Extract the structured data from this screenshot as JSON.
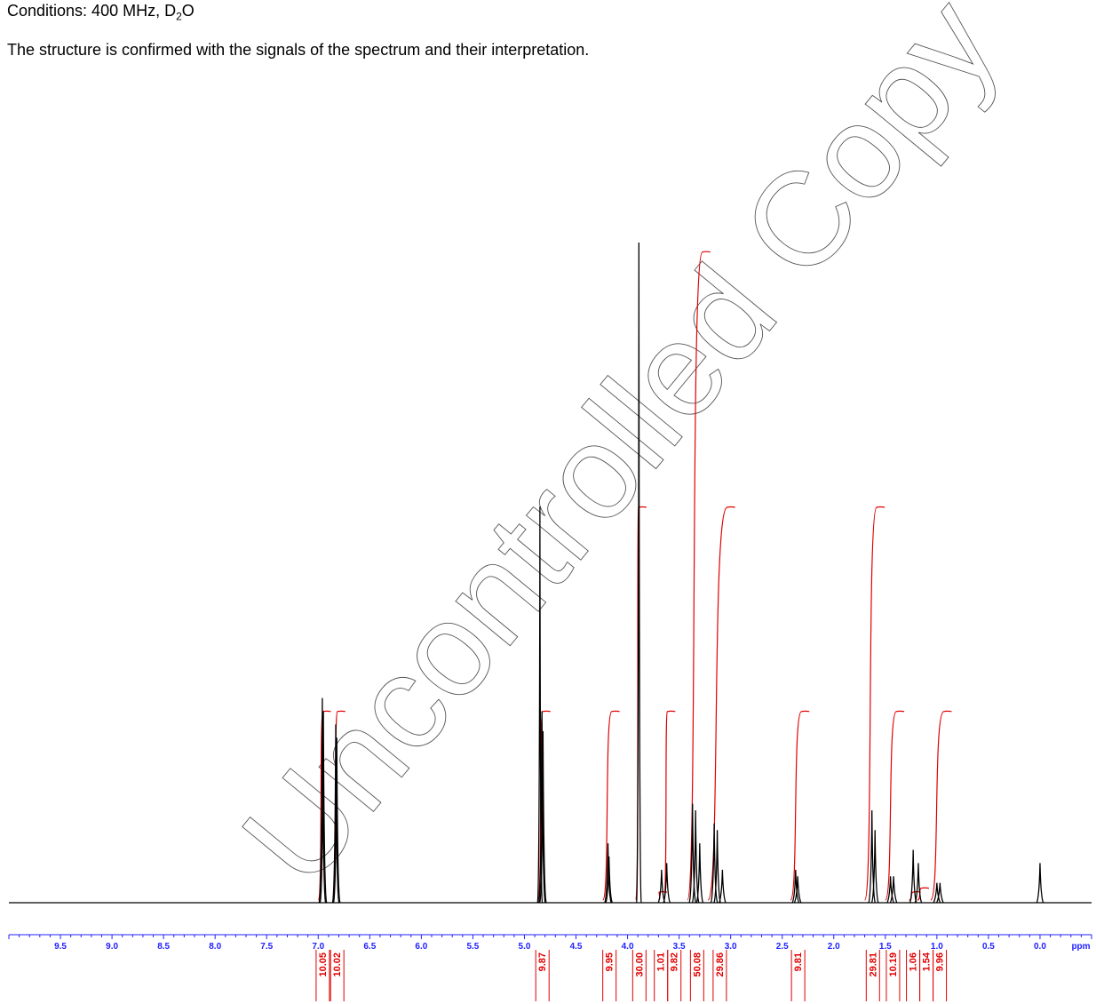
{
  "header": {
    "conditions_prefix": "Conditions: 400 MHz, D",
    "conditions_sub": "2",
    "conditions_suffix": "O",
    "statement": "The structure is confirmed with the signals of the spectrum and their interpretation."
  },
  "watermark": "Uncontrolled Copy",
  "chart_data": {
    "type": "line",
    "title": "",
    "xlabel": "ppm",
    "ylabel": "",
    "xlim": [
      10.0,
      -0.5
    ],
    "x_reversed": true,
    "grid": false,
    "legend": "none",
    "colors": {
      "spectrum": "#000000",
      "integral": "#e00000",
      "axis": "#2020ff"
    },
    "x_ticks": [
      9.5,
      9.0,
      8.5,
      8.0,
      7.5,
      7.0,
      6.5,
      6.0,
      5.5,
      5.0,
      4.5,
      4.0,
      3.5,
      3.0,
      2.5,
      2.0,
      1.5,
      1.0,
      0.5,
      0.0
    ],
    "x_tick_labels": [
      "9.5",
      "9.0",
      "8.5",
      "8.0",
      "7.5",
      "7.0",
      "6.5",
      "6.0",
      "5.5",
      "5.0",
      "4.5",
      "4.0",
      "3.5",
      "3.0",
      "2.5",
      "2.0",
      "1.5",
      "1.0",
      "0.5",
      "0.0"
    ],
    "peaks": [
      {
        "ppm": 6.96,
        "height": 0.31
      },
      {
        "ppm": 6.95,
        "height": 0.29
      },
      {
        "ppm": 6.83,
        "height": 0.27
      },
      {
        "ppm": 6.82,
        "height": 0.25
      },
      {
        "ppm": 4.85,
        "height": 0.6
      },
      {
        "ppm": 4.83,
        "height": 0.29
      },
      {
        "ppm": 4.82,
        "height": 0.26
      },
      {
        "ppm": 4.19,
        "height": 0.09
      },
      {
        "ppm": 4.18,
        "height": 0.07
      },
      {
        "ppm": 3.89,
        "height": 1.0
      },
      {
        "ppm": 3.67,
        "height": 0.05
      },
      {
        "ppm": 3.62,
        "height": 0.06
      },
      {
        "ppm": 3.37,
        "height": 0.15
      },
      {
        "ppm": 3.34,
        "height": 0.14
      },
      {
        "ppm": 3.3,
        "height": 0.09
      },
      {
        "ppm": 3.16,
        "height": 0.12
      },
      {
        "ppm": 3.13,
        "height": 0.11
      },
      {
        "ppm": 3.08,
        "height": 0.05
      },
      {
        "ppm": 2.37,
        "height": 0.05
      },
      {
        "ppm": 2.35,
        "height": 0.04
      },
      {
        "ppm": 1.63,
        "height": 0.14
      },
      {
        "ppm": 1.6,
        "height": 0.11
      },
      {
        "ppm": 1.45,
        "height": 0.04
      },
      {
        "ppm": 1.42,
        "height": 0.04
      },
      {
        "ppm": 1.23,
        "height": 0.08
      },
      {
        "ppm": 1.18,
        "height": 0.06
      },
      {
        "ppm": 1.0,
        "height": 0.03
      },
      {
        "ppm": 0.97,
        "height": 0.03
      },
      {
        "ppm": 0.0,
        "height": 0.06
      }
    ],
    "integrals": [
      {
        "start_ppm": 7.0,
        "end_ppm": 6.92,
        "value": "10.05",
        "rise": 0.48
      },
      {
        "start_ppm": 6.86,
        "end_ppm": 6.78,
        "value": "10.02",
        "rise": 0.48
      },
      {
        "start_ppm": 4.87,
        "end_ppm": 4.79,
        "value": "9.87",
        "rise": 0.48
      },
      {
        "start_ppm": 4.24,
        "end_ppm": 4.12,
        "value": "9.95",
        "rise": 0.48
      },
      {
        "start_ppm": 3.92,
        "end_ppm": 3.86,
        "value": "30.00",
        "rise": 1.0
      },
      {
        "start_ppm": 3.7,
        "end_ppm": 3.66,
        "value": "1.01",
        "rise": 0.02
      },
      {
        "start_ppm": 3.65,
        "end_ppm": 3.58,
        "value": "9.82",
        "rise": 0.48
      },
      {
        "start_ppm": 3.42,
        "end_ppm": 3.24,
        "value": "50.08",
        "rise": 1.65
      },
      {
        "start_ppm": 3.22,
        "end_ppm": 3.0,
        "value": "29.86",
        "rise": 1.0
      },
      {
        "start_ppm": 2.42,
        "end_ppm": 2.28,
        "value": "9.81",
        "rise": 0.48
      },
      {
        "start_ppm": 1.7,
        "end_ppm": 1.55,
        "value": "29.81",
        "rise": 1.0
      },
      {
        "start_ppm": 1.5,
        "end_ppm": 1.36,
        "value": "10.19",
        "rise": 0.48
      },
      {
        "start_ppm": 1.27,
        "end_ppm": 1.2,
        "value": "1.06",
        "rise": 0.02
      },
      {
        "start_ppm": 1.19,
        "end_ppm": 1.12,
        "value": "1.54",
        "rise": 0.03
      },
      {
        "start_ppm": 1.06,
        "end_ppm": 0.9,
        "value": "9.96",
        "rise": 0.48
      }
    ]
  }
}
